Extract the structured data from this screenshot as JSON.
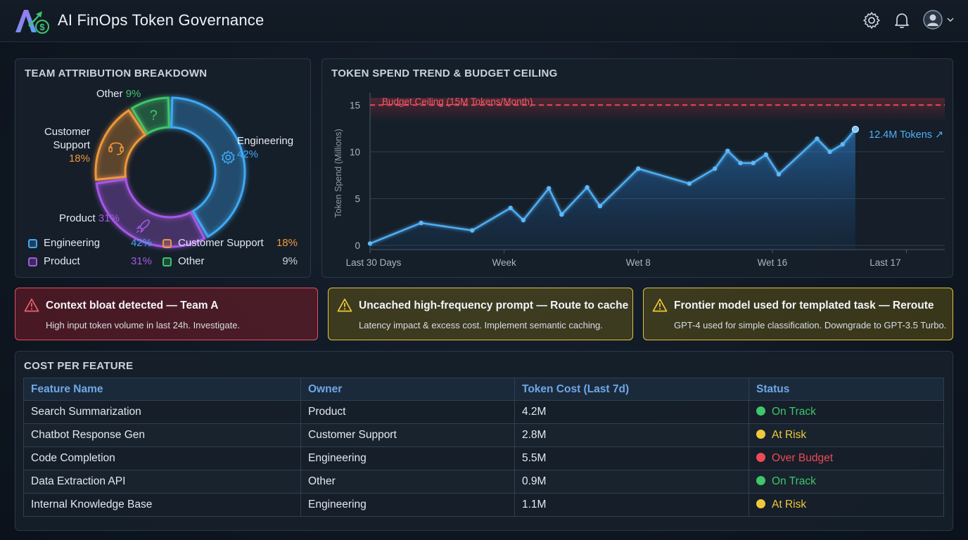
{
  "header": {
    "app_title": "AI FinOps Token Governance",
    "icons": [
      "settings-gear-icon",
      "notification-bell-icon",
      "user-avatar-icon",
      "chevron-down-icon"
    ]
  },
  "attribution": {
    "title": "TEAM ATTRIBUTION BREAKDOWN",
    "segments": [
      {
        "name": "Engineering",
        "pct_label": "42%",
        "value": 42,
        "color": "#3fa9f5",
        "icon": "gear-icon"
      },
      {
        "name": "Product",
        "pct_label": "31%",
        "value": 31,
        "color": "#a659e6",
        "icon": "rocket-icon"
      },
      {
        "name": "Customer Support",
        "pct_label": "18%",
        "value": 18,
        "color": "#f0973a",
        "icon": "headset-icon"
      },
      {
        "name": "Other",
        "pct_label": "9%",
        "value": 9,
        "color": "#3fc56b",
        "icon": "question-mark-icon"
      }
    ],
    "donut_labels": {
      "engineering": {
        "name": "Engineering",
        "pct": "42%"
      },
      "product": {
        "name": "Product",
        "pct": "31%"
      },
      "support_line1": "Customer",
      "support_line2": "Support",
      "support_pct": "18%",
      "other": {
        "name": "Other",
        "pct": "9%"
      },
      "other_icon_glyph": "?"
    }
  },
  "trend": {
    "title": "TOKEN SPEND TREND & BUDGET CEILING",
    "ceiling_label": "Budget Ceiling (15M Tokens/Month)",
    "current_label": "12.4M Tokens ↗",
    "chart_data": {
      "type": "area",
      "ylabel": "Token Spend (Millions)",
      "ylim": [
        0,
        16
      ],
      "yticks": [
        0,
        5,
        10,
        15
      ],
      "xticks": [
        "Last 30 Days",
        "Week",
        "Wet 8",
        "Wet 16",
        "Last 17"
      ],
      "xtick_positions": [
        0,
        10.5,
        21,
        31.5,
        42
      ],
      "xlim": [
        0,
        45
      ],
      "budget_ceiling": 15,
      "grid": true,
      "series": [
        {
          "x": [
            0,
            4,
            8,
            11,
            12,
            14,
            15,
            17,
            18,
            21,
            25,
            27,
            28,
            29,
            30,
            31,
            32,
            35,
            36,
            37,
            38
          ],
          "y": [
            0.2,
            2.4,
            1.6,
            4.0,
            2.7,
            6.1,
            3.3,
            6.2,
            4.2,
            8.2,
            6.6,
            8.2,
            10.1,
            8.8,
            8.8,
            9.7,
            7.6,
            11.4,
            10.0,
            10.8,
            12.4
          ]
        }
      ]
    }
  },
  "alerts": [
    {
      "severity": "critical",
      "title": "Context bloat detected — Team A",
      "desc": "High input token volume in last 24h. Investigate."
    },
    {
      "severity": "warning",
      "title": "Uncached high-frequency prompt — Route to cache",
      "desc": "Latency impact & excess cost. Implement semantic caching."
    },
    {
      "severity": "warning",
      "title": "Frontier model used for templated task — Reroute",
      "desc": "GPT-4 used for simple classification. Downgrade to GPT-3.5 Turbo."
    }
  ],
  "cost_table": {
    "title": "COST PER FEATURE",
    "columns": [
      "Feature Name",
      "Owner",
      "Token Cost (Last 7d)",
      "Status"
    ],
    "rows": [
      {
        "feature": "Search Summarization",
        "owner": "Product",
        "cost": "4.2M",
        "status": "On Track",
        "status_color": "#3fc56b"
      },
      {
        "feature": "Chatbot Response Gen",
        "owner": "Customer Support",
        "cost": "2.8M",
        "status": "At Risk",
        "status_color": "#f0c93a"
      },
      {
        "feature": "Code Completion",
        "owner": "Engineering",
        "cost": "5.5M",
        "status": "Over Budget",
        "status_color": "#ee4a55"
      },
      {
        "feature": "Data Extraction API",
        "owner": "Other",
        "cost": "0.9M",
        "status": "On Track",
        "status_color": "#3fc56b"
      },
      {
        "feature": "Internal Knowledge Base",
        "owner": "Engineering",
        "cost": "1.1M",
        "status": "At Risk",
        "status_color": "#f0c93a"
      }
    ]
  }
}
